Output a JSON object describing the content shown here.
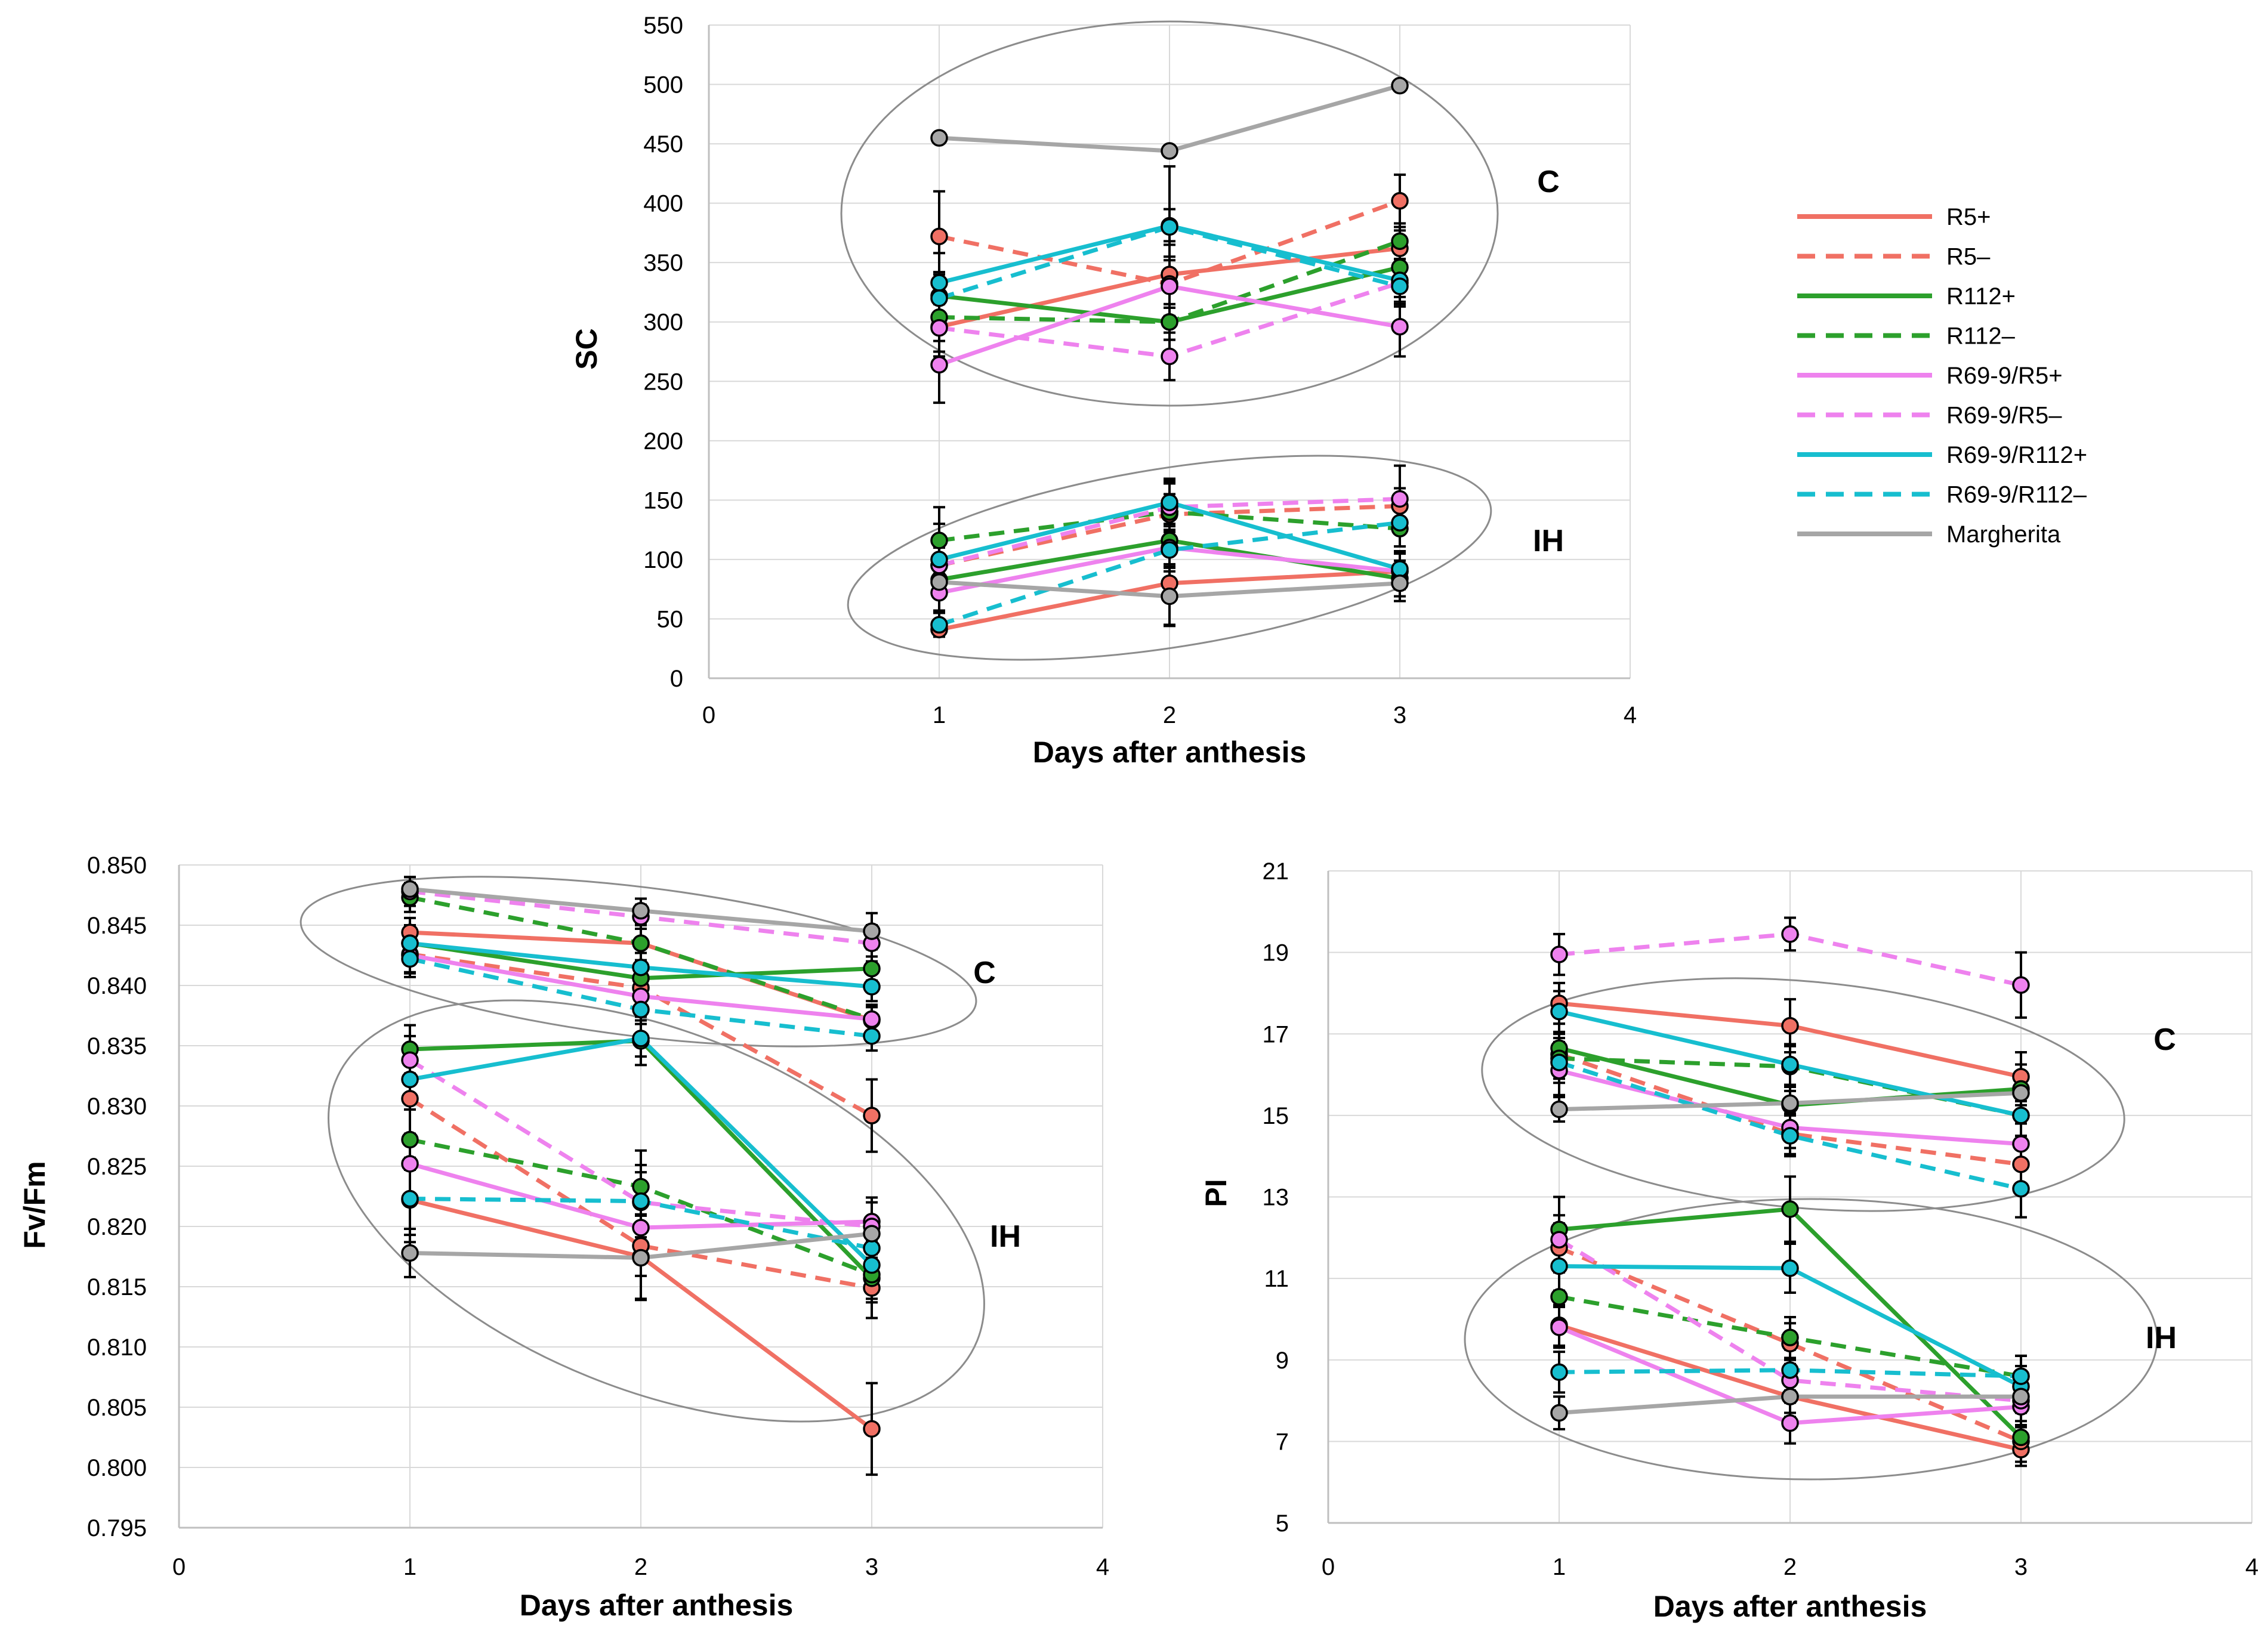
{
  "legend": [
    {
      "name": "R5+",
      "color": "#f07064",
      "dash": false
    },
    {
      "name": "R5–",
      "color": "#f07064",
      "dash": true
    },
    {
      "name": "R112+",
      "color": "#2ca02c",
      "dash": false
    },
    {
      "name": "R112–",
      "color": "#2ca02c",
      "dash": true
    },
    {
      "name": "R69-9/R5+",
      "color": "#ee82ee",
      "dash": false
    },
    {
      "name": "R69-9/R5–",
      "color": "#ee82ee",
      "dash": true
    },
    {
      "name": "R69-9/R112+",
      "color": "#17becf",
      "dash": false
    },
    {
      "name": "R69-9/R112–",
      "color": "#17becf",
      "dash": true
    },
    {
      "name": "Margherita",
      "color": "#a6a6a6",
      "dash": false
    }
  ],
  "chart_data": [
    {
      "id": "sc",
      "type": "line",
      "xlabel": "Days after anthesis",
      "ylabel": "SC",
      "xlim": [
        0,
        4
      ],
      "ylim": [
        0,
        550
      ],
      "xticks": [
        "0",
        "1",
        "2",
        "3",
        "4"
      ],
      "yticks": [
        "0",
        "50",
        "100",
        "150",
        "200",
        "250",
        "300",
        "350",
        "400",
        "450",
        "500",
        "550"
      ],
      "grid": "horizontal and vertical",
      "x": [
        1,
        2,
        3
      ],
      "group_labels": [
        "C",
        "IH"
      ],
      "series": [
        {
          "name": "R5+",
          "group": "C",
          "values": [
            296,
            340,
            362
          ],
          "err": [
            25,
            28,
            15
          ]
        },
        {
          "name": "R5–",
          "group": "C",
          "values": [
            372,
            332,
            402
          ],
          "err": [
            38,
            20,
            22
          ]
        },
        {
          "name": "R112+",
          "group": "C",
          "values": [
            322,
            300,
            346
          ],
          "err": [
            20,
            15,
            20
          ]
        },
        {
          "name": "R112–",
          "group": "C",
          "values": [
            304,
            300,
            368
          ],
          "err": [
            20,
            15,
            15
          ]
        },
        {
          "name": "R69-9/R5+",
          "group": "C",
          "values": [
            264,
            330,
            296
          ],
          "err": [
            32,
            25,
            25
          ]
        },
        {
          "name": "R69-9/R5–",
          "group": "C",
          "values": [
            295,
            271,
            333
          ],
          "err": [
            20,
            20,
            20
          ]
        },
        {
          "name": "R69-9/R112+",
          "group": "C",
          "values": [
            333,
            381,
            335
          ],
          "err": [
            25,
            50,
            18
          ]
        },
        {
          "name": "R69-9/R112–",
          "group": "C",
          "values": [
            320,
            380,
            330
          ],
          "err": [
            20,
            15,
            15
          ]
        },
        {
          "name": "Margherita",
          "group": "C",
          "values": [
            455,
            444,
            499
          ],
          "err": [
            2,
            2,
            2
          ]
        },
        {
          "name": "R5+",
          "group": "IH",
          "values": [
            41,
            80,
            90
          ],
          "err": [
            5,
            35,
            15
          ]
        },
        {
          "name": "R5–",
          "group": "IH",
          "values": [
            95,
            138,
            145
          ],
          "err": [
            15,
            28,
            15
          ]
        },
        {
          "name": "R112+",
          "group": "IH",
          "values": [
            83,
            116,
            84
          ],
          "err": [
            15,
            20,
            15
          ]
        },
        {
          "name": "R112–",
          "group": "IH",
          "values": [
            116,
            140,
            126
          ],
          "err": [
            28,
            15,
            15
          ]
        },
        {
          "name": "R69-9/R5+",
          "group": "IH",
          "values": [
            72,
            110,
            90
          ],
          "err": [
            15,
            20,
            15
          ]
        },
        {
          "name": "R69-9/R5–",
          "group": "IH",
          "values": [
            95,
            144,
            151
          ],
          "err": [
            15,
            20,
            28
          ]
        },
        {
          "name": "R69-9/R112+",
          "group": "IH",
          "values": [
            100,
            148,
            92
          ],
          "err": [
            30,
            20,
            15
          ]
        },
        {
          "name": "R69-9/R112–",
          "group": "IH",
          "values": [
            45,
            108,
            131
          ],
          "err": [
            10,
            15,
            20
          ]
        },
        {
          "name": "Margherita",
          "group": "IH",
          "values": [
            81,
            69,
            80
          ],
          "err": [
            10,
            25,
            15
          ]
        }
      ]
    },
    {
      "id": "fvfm",
      "type": "line",
      "xlabel": "Days after anthesis",
      "ylabel": "Fv/Fm",
      "xlim": [
        0,
        4
      ],
      "ylim": [
        0.795,
        0.85
      ],
      "xticks": [
        "0",
        "1",
        "2",
        "3",
        "4"
      ],
      "yticks": [
        "0.795",
        "0.800",
        "0.805",
        "0.810",
        "0.815",
        "0.820",
        "0.825",
        "0.830",
        "0.835",
        "0.840",
        "0.845",
        "0.850"
      ],
      "grid": "horizontal and vertical",
      "x": [
        1,
        2,
        3
      ],
      "group_labels": [
        "C",
        "IH"
      ],
      "series": [
        {
          "name": "R5+",
          "group": "C",
          "values": [
            0.8444,
            0.8435,
            0.8371
          ],
          "err": [
            0.0012,
            0.0015,
            0.0012
          ]
        },
        {
          "name": "R5–",
          "group": "C",
          "values": [
            0.8426,
            0.8398,
            0.8292
          ],
          "err": [
            0.0015,
            0.0015,
            0.003
          ]
        },
        {
          "name": "R112+",
          "group": "C",
          "values": [
            0.8435,
            0.8406,
            0.8414
          ],
          "err": [
            0.0015,
            0.0015,
            0.001
          ]
        },
        {
          "name": "R112–",
          "group": "C",
          "values": [
            0.8473,
            0.8435,
            0.8372
          ],
          "err": [
            0.0012,
            0.0015,
            0.001
          ]
        },
        {
          "name": "R69-9/R5+",
          "group": "C",
          "values": [
            0.8425,
            0.8391,
            0.8372
          ],
          "err": [
            0.0015,
            0.0012,
            0.0012
          ]
        },
        {
          "name": "R69-9/R5–",
          "group": "C",
          "values": [
            0.8478,
            0.8457,
            0.8435
          ],
          "err": [
            0.0012,
            0.001,
            0.0015
          ]
        },
        {
          "name": "R69-9/R112+",
          "group": "C",
          "values": [
            0.8435,
            0.8415,
            0.8399
          ],
          "err": [
            0.0015,
            0.0012,
            0.0012
          ]
        },
        {
          "name": "R69-9/R112–",
          "group": "C",
          "values": [
            0.8422,
            0.838,
            0.8358
          ],
          "err": [
            0.0015,
            0.0012,
            0.0012
          ]
        },
        {
          "name": "Margherita",
          "group": "C",
          "values": [
            0.848,
            0.8462,
            0.8445
          ],
          "err": [
            0.001,
            0.001,
            0.0015
          ]
        },
        {
          "name": "R5+",
          "group": "IH",
          "values": [
            0.8222,
            0.8175,
            0.8032
          ],
          "err": [
            0.0035,
            0.0035,
            0.0038
          ]
        },
        {
          "name": "R5–",
          "group": "IH",
          "values": [
            0.8306,
            0.8184,
            0.8149
          ],
          "err": [
            0.003,
            0.0025,
            0.0025
          ]
        },
        {
          "name": "R112+",
          "group": "IH",
          "values": [
            0.8347,
            0.8354,
            0.8157
          ],
          "err": [
            0.002,
            0.002,
            0.002
          ]
        },
        {
          "name": "R112–",
          "group": "IH",
          "values": [
            0.8272,
            0.8233,
            0.816
          ],
          "err": [
            0.0025,
            0.003,
            0.002
          ]
        },
        {
          "name": "R69-9/R5+",
          "group": "IH",
          "values": [
            0.8252,
            0.8199,
            0.8204
          ],
          "err": [
            0.0025,
            0.002,
            0.002
          ]
        },
        {
          "name": "R69-9/R5–",
          "group": "IH",
          "values": [
            0.8338,
            0.822,
            0.82
          ],
          "err": [
            0.002,
            0.0025,
            0.002
          ]
        },
        {
          "name": "R69-9/R112+",
          "group": "IH",
          "values": [
            0.8322,
            0.8356,
            0.8168
          ],
          "err": [
            0.0025,
            0.0015,
            0.002
          ]
        },
        {
          "name": "R69-9/R112–",
          "group": "IH",
          "values": [
            0.8223,
            0.8221,
            0.8182
          ],
          "err": [
            0.003,
            0.003,
            0.002
          ]
        },
        {
          "name": "Margherita",
          "group": "IH",
          "values": [
            0.8178,
            0.8174,
            0.8194
          ],
          "err": [
            0.002,
            0.0035,
            0.003
          ]
        }
      ]
    },
    {
      "id": "pi",
      "type": "line",
      "xlabel": "Days after anthesis",
      "ylabel": "PI",
      "xlim": [
        0,
        4
      ],
      "ylim": [
        5,
        21
      ],
      "xticks": [
        "0",
        "1",
        "2",
        "3",
        "4"
      ],
      "yticks": [
        "5",
        "7",
        "9",
        "11",
        "13",
        "15",
        "17",
        "19",
        "21"
      ],
      "grid": "horizontal and vertical",
      "x": [
        1,
        2,
        3
      ],
      "group_labels": [
        "C",
        "IH"
      ],
      "series": [
        {
          "name": "R5+",
          "group": "C",
          "values": [
            17.75,
            17.2,
            15.95
          ],
          "err": [
            0.5,
            0.65,
            0.6
          ]
        },
        {
          "name": "R5–",
          "group": "C",
          "values": [
            16.5,
            14.55,
            13.8
          ],
          "err": [
            0.5,
            0.5,
            0.5
          ]
        },
        {
          "name": "R112+",
          "group": "C",
          "values": [
            16.65,
            15.25,
            15.65
          ],
          "err": [
            0.6,
            0.5,
            0.6
          ]
        },
        {
          "name": "R112–",
          "group": "C",
          "values": [
            16.4,
            16.2,
            15.0
          ],
          "err": [
            0.5,
            0.5,
            0.5
          ]
        },
        {
          "name": "R69-9/R5+",
          "group": "C",
          "values": [
            16.1,
            14.7,
            14.3
          ],
          "err": [
            0.6,
            0.5,
            0.5
          ]
        },
        {
          "name": "R69-9/R5–",
          "group": "C",
          "values": [
            18.95,
            19.45,
            18.2
          ],
          "err": [
            0.5,
            0.4,
            0.8
          ]
        },
        {
          "name": "R69-9/R112+",
          "group": "C",
          "values": [
            17.55,
            16.25,
            15.0
          ],
          "err": [
            0.5,
            0.5,
            0.5
          ]
        },
        {
          "name": "R69-9/R112–",
          "group": "C",
          "values": [
            16.3,
            14.5,
            13.2
          ],
          "err": [
            0.5,
            0.5,
            0.7
          ]
        },
        {
          "name": "Margherita",
          "group": "C",
          "values": [
            15.15,
            15.3,
            15.55
          ],
          "err": [
            0.3,
            0.3,
            0.3
          ]
        },
        {
          "name": "R5+",
          "group": "IH",
          "values": [
            9.85,
            8.1,
            6.8
          ],
          "err": [
            0.5,
            0.5,
            0.4
          ]
        },
        {
          "name": "R5–",
          "group": "IH",
          "values": [
            11.75,
            9.4,
            7.0
          ],
          "err": [
            0.6,
            0.5,
            0.5
          ]
        },
        {
          "name": "R112+",
          "group": "IH",
          "values": [
            12.2,
            12.7,
            7.1
          ],
          "err": [
            0.8,
            0.8,
            0.6
          ]
        },
        {
          "name": "R112–",
          "group": "IH",
          "values": [
            10.55,
            9.55,
            8.6
          ],
          "err": [
            0.6,
            0.5,
            0.5
          ]
        },
        {
          "name": "R69-9/R5+",
          "group": "IH",
          "values": [
            9.8,
            7.45,
            7.85
          ],
          "err": [
            0.5,
            0.5,
            0.5
          ]
        },
        {
          "name": "R69-9/R5–",
          "group": "IH",
          "values": [
            11.95,
            8.5,
            8.0
          ],
          "err": [
            0.6,
            0.5,
            0.6
          ]
        },
        {
          "name": "R69-9/R112+",
          "group": "IH",
          "values": [
            11.3,
            11.25,
            8.35
          ],
          "err": [
            0.6,
            0.6,
            0.5
          ]
        },
        {
          "name": "R69-9/R112–",
          "group": "IH",
          "values": [
            8.7,
            8.75,
            8.6
          ],
          "err": [
            0.5,
            0.5,
            0.5
          ]
        },
        {
          "name": "Margherita",
          "group": "IH",
          "values": [
            7.7,
            8.1,
            8.1
          ],
          "err": [
            0.4,
            0.4,
            0.4
          ]
        }
      ]
    }
  ]
}
